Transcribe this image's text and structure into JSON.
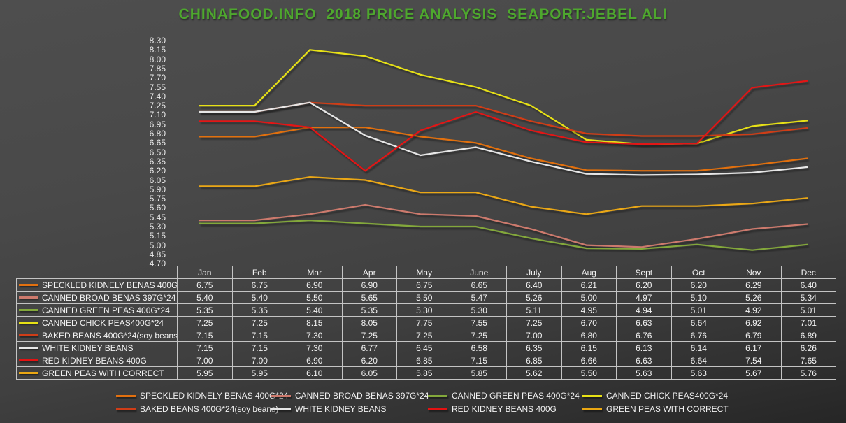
{
  "title": "CHINAFOOD.INFO  2018 PRICE ANALYSIS  SEAPORT:JEBEL ALI",
  "colors": {
    "title_text": "#4ea72e",
    "axis_text": "#ededed",
    "table_text": "#f2f2f2",
    "table_border": "#c4c4c4",
    "background_top": "#4e4e4e",
    "background_bottom": "#262626"
  },
  "chart_data": {
    "type": "line",
    "title": "CHINAFOOD.INFO  2018 PRICE ANALYSIS  SEAPORT:JEBEL ALI",
    "xlabel": "",
    "ylabel": "",
    "x_categories": [
      "Jan",
      "Feb",
      "Mar",
      "Apr",
      "May",
      "June",
      "July",
      "Aug",
      "Sept",
      "Oct",
      "Nov",
      "Dec"
    ],
    "ylim": [
      4.7,
      8.3
    ],
    "ytick_interval": 0.15,
    "yticks": [
      "8.30",
      "8.15",
      "8.00",
      "7.85",
      "7.70",
      "7.55",
      "7.40",
      "7.25",
      "7.10",
      "6.95",
      "6.80",
      "6.65",
      "6.50",
      "6.35",
      "6.20",
      "6.05",
      "5.90",
      "5.75",
      "5.60",
      "5.45",
      "5.30",
      "5.15",
      "5.00",
      "4.85",
      "4.70"
    ],
    "grid": false,
    "legend_position": "bottom",
    "series": [
      {
        "name": "SPECKLED KIDNELY BENAS 400G*24",
        "color": "#e2700f",
        "values": [
          6.75,
          6.75,
          6.9,
          6.9,
          6.75,
          6.65,
          6.4,
          6.21,
          6.2,
          6.2,
          6.29,
          6.4
        ]
      },
      {
        "name": "CANNED BROAD BENAS 397G*24",
        "color": "#cd7a6d",
        "values": [
          5.4,
          5.4,
          5.5,
          5.65,
          5.5,
          5.47,
          5.26,
          5.0,
          4.97,
          5.1,
          5.26,
          5.34
        ]
      },
      {
        "name": "CANNED GREEN PEAS 400G*24",
        "color": "#83a83b",
        "values": [
          5.35,
          5.35,
          5.4,
          5.35,
          5.3,
          5.3,
          5.11,
          4.95,
          4.94,
          5.01,
          4.92,
          5.01
        ]
      },
      {
        "name": "CANNED CHICK PEAS400G*24",
        "color": "#e7e115",
        "values": [
          7.25,
          7.25,
          8.15,
          8.05,
          7.75,
          7.55,
          7.25,
          6.7,
          6.63,
          6.64,
          6.92,
          7.01
        ]
      },
      {
        "name": "BAKED BEANS 400G*24(soy beans)",
        "color": "#cf3d17",
        "values": [
          7.15,
          7.15,
          7.3,
          7.25,
          7.25,
          7.25,
          7.0,
          6.8,
          6.76,
          6.76,
          6.79,
          6.89
        ]
      },
      {
        "name": "WHITE KIDNEY BEANS",
        "color": "#e6e6e6",
        "values": [
          7.15,
          7.15,
          7.3,
          6.77,
          6.45,
          6.58,
          6.35,
          6.15,
          6.13,
          6.14,
          6.17,
          6.26
        ]
      },
      {
        "name": "RED KIDNEY BEANS 400G",
        "color": "#e31212",
        "values": [
          7.0,
          7.0,
          6.9,
          6.2,
          6.85,
          7.15,
          6.85,
          6.66,
          6.63,
          6.64,
          7.54,
          7.65
        ]
      },
      {
        "name": "GREEN PEAS WITH CORRECT",
        "color": "#eaa713",
        "values": [
          5.95,
          5.95,
          6.1,
          6.05,
          5.85,
          5.85,
          5.62,
          5.5,
          5.63,
          5.63,
          5.67,
          5.76
        ]
      }
    ]
  },
  "table": {
    "col_headers": [
      "Jan",
      "Feb",
      "Mar",
      "Apr",
      "May",
      "June",
      "July",
      "Aug",
      "Sept",
      "Oct",
      "Nov",
      "Dec"
    ],
    "value_decimals": 2
  }
}
